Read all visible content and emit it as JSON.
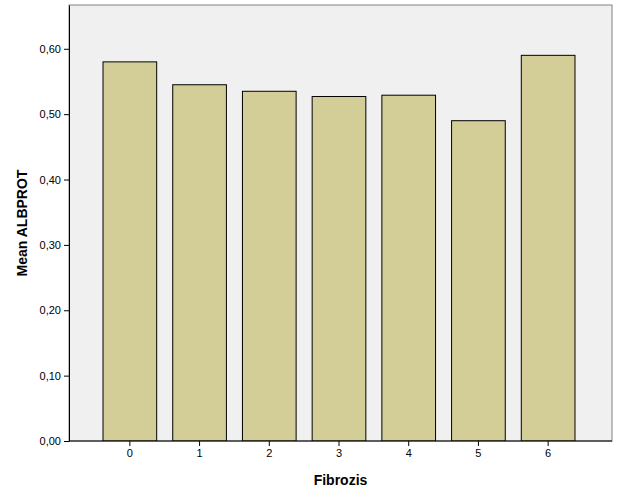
{
  "chart_data": {
    "type": "bar",
    "x_label": "Fibrozis",
    "y_label": "Mean ALBPROT",
    "categories": [
      "0",
      "1",
      "2",
      "3",
      "4",
      "5",
      "6"
    ],
    "values": [
      0.58,
      0.545,
      0.535,
      0.527,
      0.529,
      0.49,
      0.59
    ],
    "color": "#d3ce97",
    "ylim": [
      0,
      0.667
    ],
    "yticks": [
      {
        "value": 0,
        "label": "0,00"
      },
      {
        "value": 0.1,
        "label": "0,10"
      },
      {
        "value": 0.2,
        "label": "0,20"
      },
      {
        "value": 0.3,
        "label": "0,30"
      },
      {
        "value": 0.4,
        "label": "0,40"
      },
      {
        "value": 0.5,
        "label": "0,50"
      },
      {
        "value": 0.6,
        "label": "0,60"
      }
    ],
    "grid": false
  }
}
